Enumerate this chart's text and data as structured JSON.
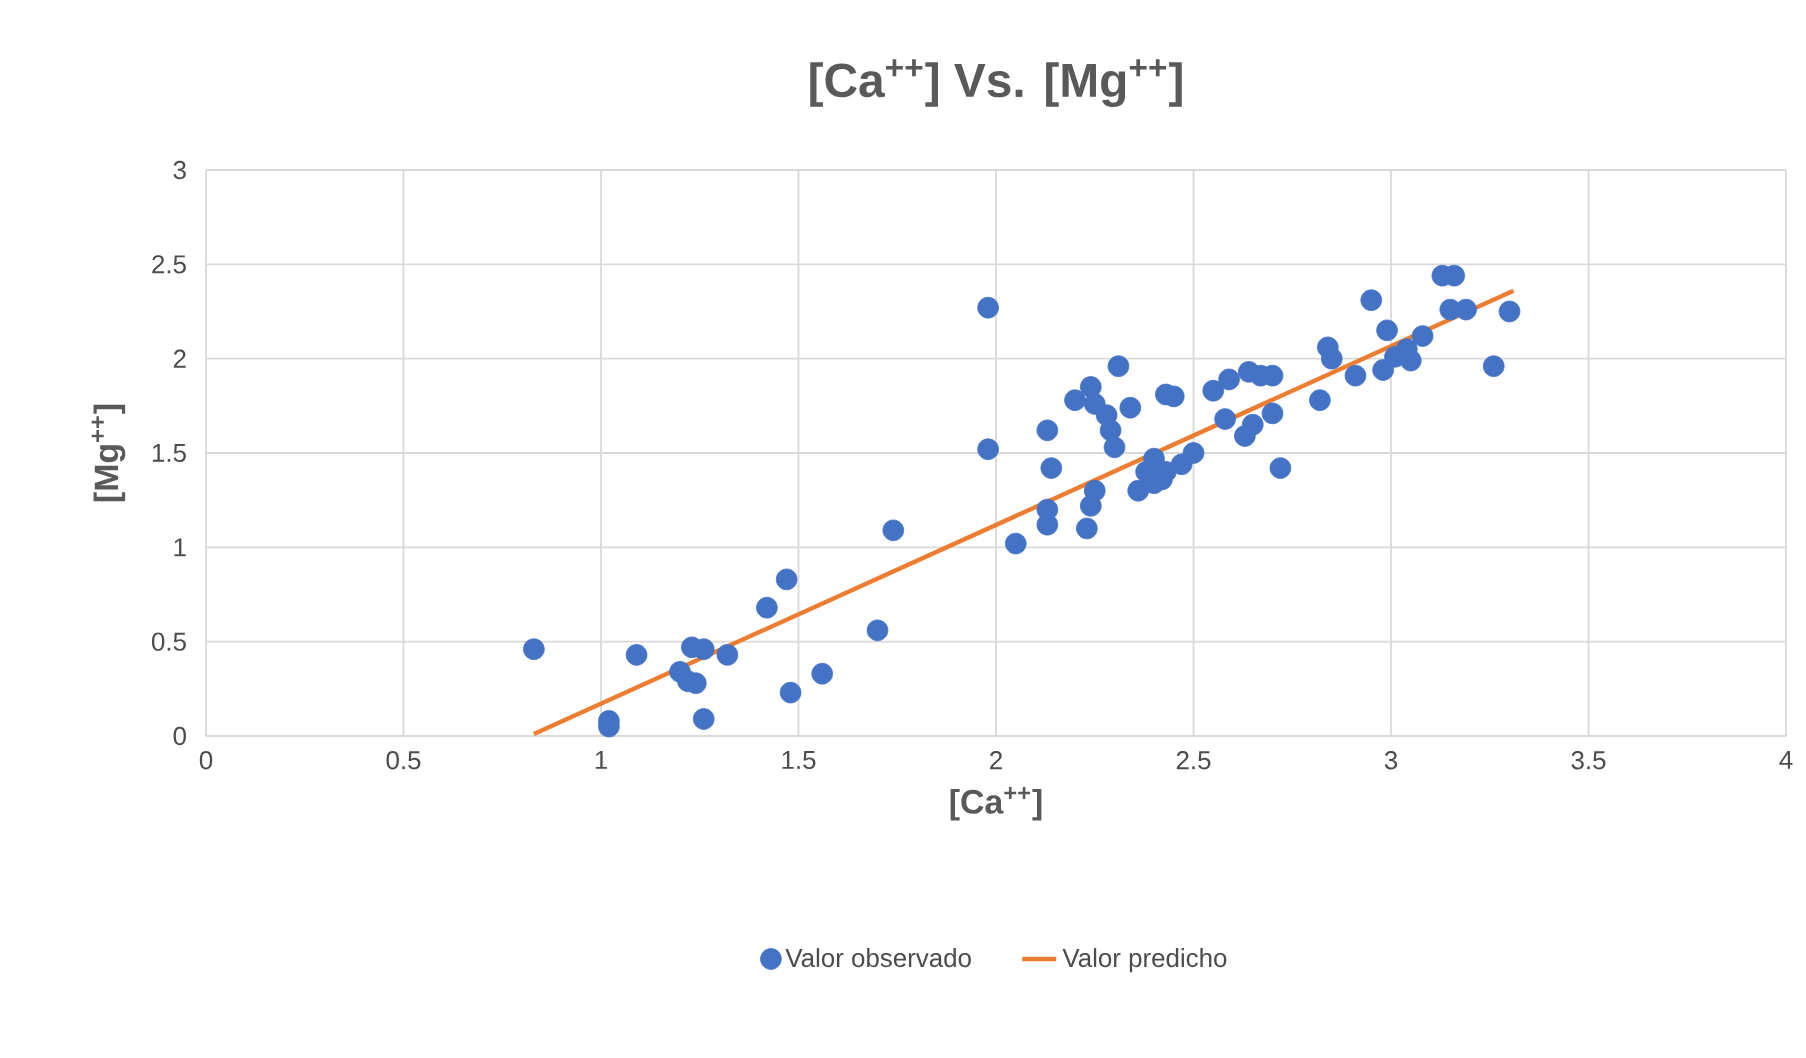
{
  "chart_data": {
    "type": "scatter",
    "title": "[Ca$^{++}$] Vs. [Mg$^{++}$]",
    "xlabel": "[Ca$^{++}$]",
    "ylabel": "[Mg$^{++}$]",
    "xlim": [
      0,
      4
    ],
    "xticks": [
      0,
      0.5,
      1,
      1.5,
      2,
      2.5,
      3,
      3.5,
      4
    ],
    "ylim": [
      0,
      3
    ],
    "yticks": [
      0,
      0.5,
      1,
      1.5,
      2,
      2.5,
      3
    ],
    "grid": true,
    "legend": "bottom",
    "series": [
      {
        "name": "Valor observado",
        "marker": "circle",
        "color": "#4472c4",
        "x": [
          0.83,
          1.02,
          1.02,
          1.09,
          1.2,
          1.23,
          1.26,
          1.22,
          1.24,
          1.26,
          1.32,
          1.42,
          1.47,
          1.48,
          1.56,
          1.7,
          1.74,
          1.98,
          1.98,
          2.05,
          2.13,
          2.14,
          2.13,
          2.13,
          2.2,
          2.24,
          2.25,
          2.28,
          2.29,
          2.3,
          2.31,
          2.34,
          2.25,
          2.24,
          2.23,
          2.36,
          2.38,
          2.4,
          2.42,
          2.43,
          2.45,
          2.4,
          2.43,
          2.47,
          2.5,
          2.55,
          2.59,
          2.64,
          2.67,
          2.7,
          2.58,
          2.63,
          2.65,
          2.7,
          2.72,
          2.82,
          2.84,
          2.85,
          2.91,
          2.95,
          2.98,
          2.99,
          3.01,
          3.04,
          3.05,
          3.08,
          3.13,
          3.16,
          3.15,
          3.19,
          3.26,
          3.3
        ],
        "values": [
          0.46,
          0.08,
          0.05,
          0.43,
          0.34,
          0.47,
          0.46,
          0.29,
          0.28,
          0.09,
          0.43,
          0.68,
          0.83,
          0.23,
          0.33,
          0.56,
          1.09,
          2.27,
          1.52,
          1.02,
          1.62,
          1.42,
          1.2,
          1.12,
          1.78,
          1.85,
          1.76,
          1.7,
          1.62,
          1.53,
          1.96,
          1.74,
          1.3,
          1.22,
          1.1,
          1.3,
          1.4,
          1.47,
          1.36,
          1.81,
          1.8,
          1.34,
          1.4,
          1.44,
          1.5,
          1.83,
          1.89,
          1.93,
          1.91,
          1.91,
          1.68,
          1.59,
          1.65,
          1.71,
          1.42,
          1.78,
          2.06,
          2.0,
          1.91,
          2.31,
          1.94,
          2.15,
          2.01,
          2.05,
          1.99,
          2.12,
          2.44,
          2.44,
          2.26,
          2.26,
          1.96,
          2.25
        ]
      },
      {
        "name": "Valor predicho",
        "type": "line",
        "marker": "none",
        "line_style": "solid",
        "color": "#ed7d31",
        "x": [
          0.83,
          3.31
        ],
        "values": [
          0.01,
          2.36
        ]
      }
    ]
  }
}
